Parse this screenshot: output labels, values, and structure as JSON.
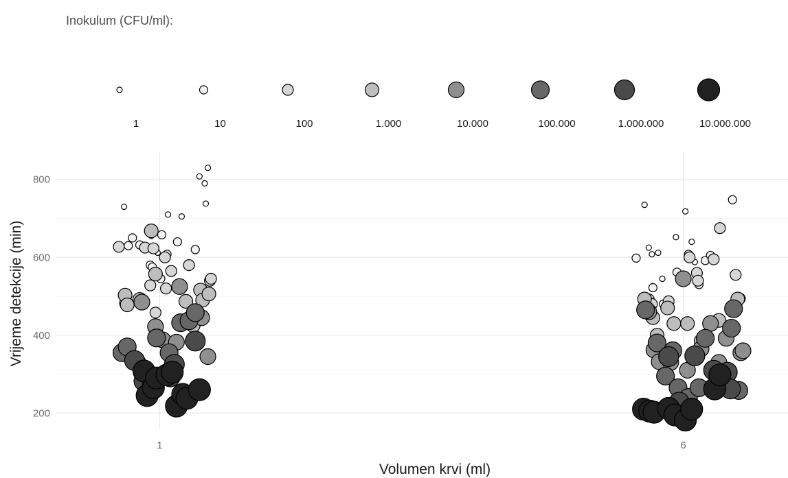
{
  "legend": {
    "title": "Inokulum (CFU/ml):",
    "levels": [
      "1",
      "10",
      "100",
      "1.000",
      "10.000",
      "100.000",
      "1.000.000",
      "10.000.000"
    ],
    "colors": [
      "#ffffff",
      "#f1f1f1",
      "#d6d6d6",
      "#bdbdbd",
      "#8f8f8f",
      "#676767",
      "#4a4a4a",
      "#212121"
    ]
  },
  "chart_data": {
    "type": "scatter",
    "title": "",
    "xlabel": "Volumen krvi (ml)",
    "ylabel": "Vrijeme detekcije (min)",
    "x_categories": [
      "1",
      "6"
    ],
    "yticks": [
      200,
      400,
      600,
      800
    ],
    "ylim": [
      160,
      870
    ],
    "grid": true,
    "legend_position": "top",
    "series": [
      {
        "name": "1",
        "x": [
          0.66,
          0.88,
          0.92,
          0.98,
          1.08,
          1.21,
          1.38,
          1.43,
          1.44,
          1.46,
          5.63,
          5.67,
          5.7,
          5.76,
          5.8,
          5.93,
          6.02,
          6.08,
          6.11,
          6.13
        ],
        "y": [
          730,
          668,
          655,
          612,
          710,
          705,
          808,
          790,
          738,
          830,
          735,
          625,
          608,
          612,
          545,
          652,
          718,
          640,
          588,
          565
        ]
      },
      {
        "name": "10",
        "x": [
          0.7,
          0.74,
          0.81,
          0.91,
          0.93,
          1.01,
          1.02,
          1.07,
          1.17,
          1.34,
          5.55,
          5.71,
          5.81,
          5.94,
          6.05,
          6.15,
          6.21,
          6.26,
          6.3,
          6.47
        ],
        "y": [
          630,
          650,
          632,
          580,
          575,
          545,
          658,
          608,
          640,
          620,
          598,
          522,
          480,
          562,
          608,
          530,
          592,
          605,
          595,
          748
        ]
      },
      {
        "name": "100",
        "x": [
          0.61,
          0.67,
          0.86,
          0.91,
          0.94,
          0.96,
          1.05,
          1.06,
          1.11,
          1.28,
          1.48,
          1.49,
          5.67,
          5.7,
          5.86,
          6.06,
          6.13,
          6.14,
          6.29,
          6.35,
          6.5,
          6.54
        ],
        "y": [
          627,
          482,
          625,
          528,
          623,
          458,
          600,
          520,
          565,
          580,
          540,
          545,
          492,
          480,
          487,
          600,
          560,
          540,
          595,
          675,
          555,
          494
        ]
      },
      {
        "name": "1.000",
        "x": [
          0.67,
          0.69,
          0.81,
          0.92,
          0.96,
          1.25,
          1.29,
          1.32,
          1.39,
          1.41,
          1.47,
          5.63,
          5.71,
          5.75,
          5.78,
          5.85,
          5.91,
          6.04,
          6.17,
          6.34,
          6.46,
          6.52
        ],
        "y": [
          503,
          478,
          492,
          668,
          557,
          487,
          440,
          425,
          516,
          490,
          506,
          493,
          445,
          400,
          355,
          470,
          430,
          430,
          385,
          438,
          415,
          493
        ]
      },
      {
        "name": "10.000",
        "x": [
          0.83,
          0.96,
          1.03,
          1.16,
          1.19,
          1.4,
          1.46,
          5.67,
          5.72,
          5.77,
          5.88,
          6.0,
          6.04,
          6.17,
          6.26,
          6.34,
          6.41,
          6.55,
          6.57
        ],
        "y": [
          485,
          422,
          388,
          382,
          525,
          445,
          345,
          460,
          362,
          332,
          330,
          545,
          310,
          365,
          430,
          330,
          392,
          355,
          360
        ]
      },
      {
        "name": "100.000",
        "x": [
          0.64,
          0.69,
          0.78,
          0.97,
          1.09,
          1.2,
          1.28,
          1.34,
          5.64,
          5.75,
          5.83,
          5.9,
          5.95,
          6.05,
          6.15,
          6.21,
          6.46,
          6.48,
          6.53
        ],
        "y": [
          355,
          370,
          330,
          393,
          355,
          432,
          437,
          458,
          465,
          380,
          295,
          360,
          265,
          240,
          265,
          392,
          418,
          468,
          258
        ]
      },
      {
        "name": "1.000.000",
        "x": [
          0.76,
          0.85,
          0.93,
          1.1,
          1.14,
          1.34,
          5.86,
          5.96,
          6.11,
          6.29,
          6.42,
          6.45
        ],
        "y": [
          335,
          282,
          271,
          293,
          325,
          385,
          345,
          228,
          347,
          310,
          305,
          262
        ]
      },
      {
        "name": "10.000.000",
        "x": [
          0.85,
          0.88,
          0.94,
          0.97,
          1.07,
          1.12,
          1.16,
          1.22,
          1.26,
          1.38,
          5.62,
          5.68,
          5.72,
          5.86,
          5.92,
          6.02,
          6.08,
          6.3,
          6.35
        ],
        "y": [
          308,
          245,
          265,
          290,
          298,
          305,
          218,
          248,
          238,
          260,
          210,
          205,
          202,
          212,
          195,
          182,
          210,
          262,
          298
        ]
      }
    ]
  }
}
